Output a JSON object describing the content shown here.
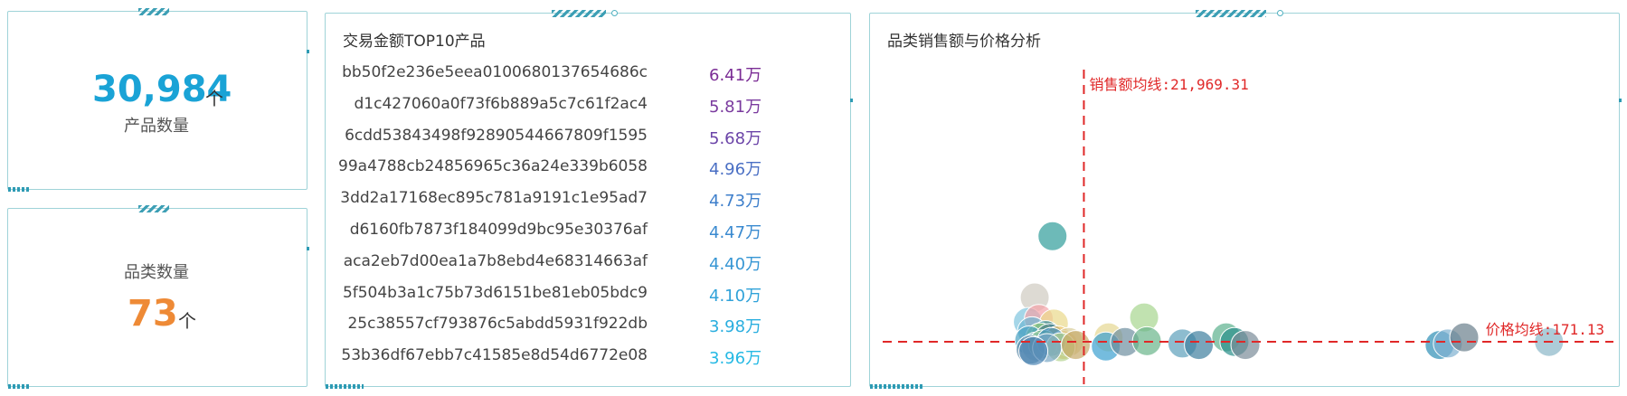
{
  "kpi_products": {
    "value": "30,984",
    "unit": "个",
    "label": "产品数量",
    "color": "#1aa3d6"
  },
  "kpi_categories": {
    "value": "73",
    "unit": "个",
    "label": "品类数量",
    "color": "#ee8a36"
  },
  "top10": {
    "title": "交易金额TOP10产品",
    "items": [
      {
        "name": "bb50f2e236e5eea0100680137654686c",
        "value": "6.41万",
        "color": "#7b2d95"
      },
      {
        "name": "d1c427060a0f73f6b889a5c7c61f2ac4",
        "value": "5.81万",
        "color": "#7a3a9e"
      },
      {
        "name": "6cdd53843498f92890544667809f1595",
        "value": "5.68万",
        "color": "#6b44a8"
      },
      {
        "name": "99a4788cb24856965c36a24e339b6058",
        "value": "4.96万",
        "color": "#4a6fc4"
      },
      {
        "name": "3dd2a17168ec895c781a9191c1e95ad7",
        "value": "4.73万",
        "color": "#3e7fcb"
      },
      {
        "name": "d6160fb7873f184099d9bc95e30376af",
        "value": "4.47万",
        "color": "#3a8ad0"
      },
      {
        "name": "aca2eb7d00ea1a7b8ebd4e68314663af",
        "value": "4.40万",
        "color": "#3696d4"
      },
      {
        "name": "5f504b3a1c75b73d6151be81eb05bdc9",
        "value": "4.10万",
        "color": "#30a2d9"
      },
      {
        "name": "25c38557cf793876c5abdd5931f922db",
        "value": "3.98万",
        "color": "#2aaedf"
      },
      {
        "name": "53b36df67ebb7c41585e8d54d6772e08",
        "value": "3.96万",
        "color": "#25b9e4"
      }
    ]
  },
  "scatter": {
    "title": "品类销售额与价格分析",
    "sales_mean_label": "销售额均线:21,969.31",
    "price_mean_label": "价格均线:171.13",
    "line_color": "#e02828"
  },
  "chart_data": {
    "type": "scatter",
    "title": "品类销售额与价格分析",
    "xlabel": "",
    "ylabel": "",
    "xlim": [
      0,
      200000
    ],
    "ylim": [
      0,
      1800
    ],
    "sales_mean": 21969.31,
    "price_mean": 171.13,
    "points": [
      {
        "x": 10500,
        "y": 860,
        "c": "#2f9c9a"
      },
      {
        "x": 4000,
        "y": 460,
        "c": "#cfcac0"
      },
      {
        "x": 1500,
        "y": 300,
        "c": "#7fc4de"
      },
      {
        "x": 5500,
        "y": 320,
        "c": "#f3a3a8"
      },
      {
        "x": 11000,
        "y": 290,
        "c": "#e9d98a"
      },
      {
        "x": 3000,
        "y": 240,
        "c": "#6fb7d3"
      },
      {
        "x": 8000,
        "y": 215,
        "c": "#2b8c9e"
      },
      {
        "x": 6000,
        "y": 200,
        "c": "#9ccf7d"
      },
      {
        "x": 2000,
        "y": 180,
        "c": "#4aa3c3"
      },
      {
        "x": 9500,
        "y": 195,
        "c": "#4a7f8c"
      },
      {
        "x": 12500,
        "y": 180,
        "c": "#f0c36a"
      },
      {
        "x": 14500,
        "y": 150,
        "c": "#e8b34f"
      },
      {
        "x": 16500,
        "y": 170,
        "c": "#d8cd9a"
      },
      {
        "x": 4500,
        "y": 140,
        "c": "#9fc7d9"
      },
      {
        "x": 7000,
        "y": 155,
        "c": "#87c48d"
      },
      {
        "x": 10000,
        "y": 170,
        "c": "#3d8fbf"
      },
      {
        "x": 2500,
        "y": 120,
        "c": "#5d8aa8"
      },
      {
        "x": 13500,
        "y": 135,
        "c": "#b3d38f"
      },
      {
        "x": 8500,
        "y": 130,
        "c": "#79a7c4"
      },
      {
        "x": 3500,
        "y": 110,
        "c": "#4e86b5"
      },
      {
        "x": 19000,
        "y": 150,
        "c": "#c6a96a"
      },
      {
        "x": 31000,
        "y": 200,
        "c": "#e6d792"
      },
      {
        "x": 30000,
        "y": 140,
        "c": "#3a9fd0"
      },
      {
        "x": 37000,
        "y": 170,
        "c": "#6e8fa0"
      },
      {
        "x": 44000,
        "y": 330,
        "c": "#a7d68f"
      },
      {
        "x": 45000,
        "y": 175,
        "c": "#6ab58a"
      },
      {
        "x": 58000,
        "y": 160,
        "c": "#5c9fba"
      },
      {
        "x": 64000,
        "y": 150,
        "c": "#3e7f9e"
      },
      {
        "x": 74000,
        "y": 200,
        "c": "#5bb08d"
      },
      {
        "x": 77000,
        "y": 170,
        "c": "#2a8f8a"
      },
      {
        "x": 81000,
        "y": 150,
        "c": "#7a8c99"
      },
      {
        "x": 152000,
        "y": 150,
        "c": "#2e8fb5"
      },
      {
        "x": 155000,
        "y": 160,
        "c": "#7fb1d0"
      },
      {
        "x": 161000,
        "y": 200,
        "c": "#6a7f8c"
      },
      {
        "x": 192000,
        "y": 170,
        "c": "#8ab7c8"
      }
    ]
  }
}
